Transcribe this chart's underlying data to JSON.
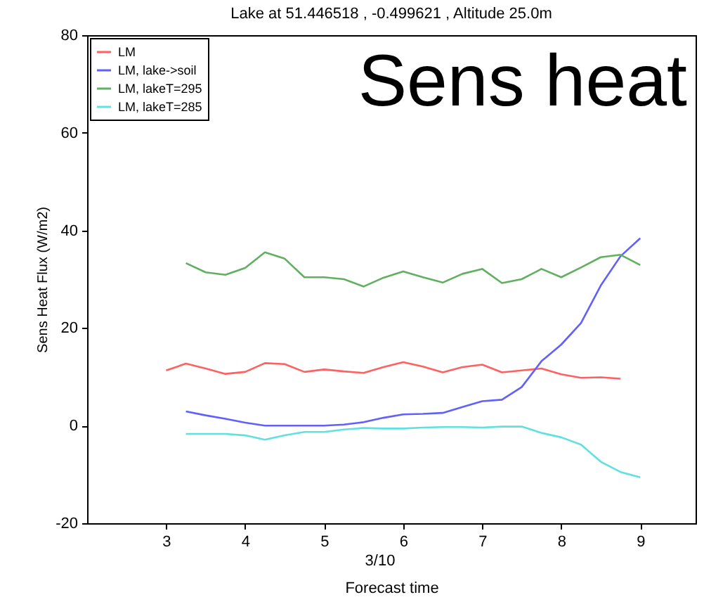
{
  "chart_data": {
    "type": "line",
    "title": "Lake at 51.446518 , -0.499621 , Altitude 25.0m",
    "xlabel": "Forecast time",
    "ylabel": "Sens Heat Flux (W/m2)",
    "annotations": [
      "Sens heat",
      "3/10"
    ],
    "xlim": [
      2,
      9.7
    ],
    "xticks": [
      3,
      4,
      5,
      6,
      7,
      8,
      9
    ],
    "ylim": [
      -20,
      80
    ],
    "yticks": [
      -20,
      0,
      20,
      40,
      60,
      80
    ],
    "grid": false,
    "legend": "top left",
    "line_style": "solid",
    "marker": "none",
    "series": [
      {
        "name": "LM",
        "color": "#ff6060",
        "x": [
          3,
          3.25,
          3.5,
          3.75,
          4,
          4.25,
          4.5,
          4.75,
          5,
          5.25,
          5.5,
          5.75,
          6,
          6.25,
          6.5,
          6.75,
          7,
          7.25,
          7.5,
          7.75,
          8,
          8.25,
          8.5,
          8.75
        ],
        "values": [
          11.3,
          12.7,
          11.7,
          10.6,
          11.0,
          12.8,
          12.6,
          11.0,
          11.5,
          11.1,
          10.8,
          12.0,
          13.0,
          12.1,
          10.9,
          12.0,
          12.5,
          10.9,
          11.3,
          11.7,
          10.5,
          9.8,
          9.9,
          9.6
        ]
      },
      {
        "name": "LM, lake->soil",
        "color": "#6060ff",
        "x": [
          3.25,
          3.5,
          3.75,
          4,
          4.25,
          4.5,
          4.75,
          5,
          5.25,
          5.5,
          5.75,
          6,
          6.25,
          6.5,
          6.75,
          7,
          7.25,
          7.5,
          7.75,
          8,
          8.25,
          8.5,
          8.75,
          9
        ],
        "values": [
          2.9,
          2.1,
          1.4,
          0.6,
          0,
          0,
          0,
          0,
          0.2,
          0.7,
          1.6,
          2.3,
          2.4,
          2.6,
          3.8,
          5.0,
          5.3,
          7.9,
          13.2,
          16.6,
          21.0,
          28.7,
          34.7,
          38.4
        ]
      },
      {
        "name": "LM, lakeT=295",
        "color": "#60b060",
        "x": [
          3.25,
          3.5,
          3.75,
          4,
          4.25,
          4.5,
          4.75,
          5,
          5.25,
          5.5,
          5.75,
          6,
          6.25,
          6.5,
          6.75,
          7,
          7.25,
          7.5,
          7.75,
          8,
          8.25,
          8.5,
          8.75,
          9
        ],
        "values": [
          33.3,
          31.4,
          30.9,
          32.3,
          35.5,
          34.2,
          30.4,
          30.4,
          30.0,
          28.5,
          30.3,
          31.6,
          30.4,
          29.3,
          31.1,
          32.1,
          29.2,
          30.0,
          32.1,
          30.4,
          32.4,
          34.5,
          35.0,
          32.9
        ]
      },
      {
        "name": "LM, lakeT=285",
        "color": "#60e0e0",
        "x": [
          3.25,
          3.5,
          3.75,
          4,
          4.25,
          4.5,
          4.75,
          5,
          5.25,
          5.5,
          5.75,
          6,
          6.25,
          6.5,
          6.75,
          7,
          7.25,
          7.5,
          7.75,
          8,
          8.25,
          8.5,
          8.75,
          9
        ],
        "values": [
          -1.7,
          -1.7,
          -1.7,
          -2.0,
          -2.9,
          -2.0,
          -1.3,
          -1.3,
          -0.8,
          -0.5,
          -0.6,
          -0.6,
          -0.4,
          -0.3,
          -0.3,
          -0.4,
          -0.2,
          -0.2,
          -1.5,
          -2.4,
          -3.9,
          -7.4,
          -9.5,
          -10.6
        ]
      }
    ]
  }
}
